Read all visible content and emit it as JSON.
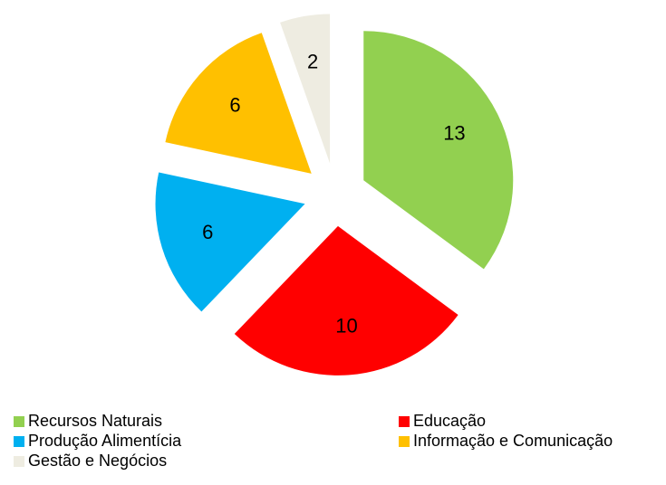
{
  "chart_data": {
    "type": "pie",
    "categories": [
      "Recursos Naturais",
      "Educação",
      "Produção Alimentícia",
      "Informação e Comunicação",
      "Gestão e Negócios"
    ],
    "values": [
      13,
      10,
      6,
      6,
      2
    ],
    "colors": [
      "#92d050",
      "#ff0000",
      "#00b0f0",
      "#ffc000",
      "#eeece1"
    ],
    "exploded": true,
    "legend": "bottom"
  }
}
